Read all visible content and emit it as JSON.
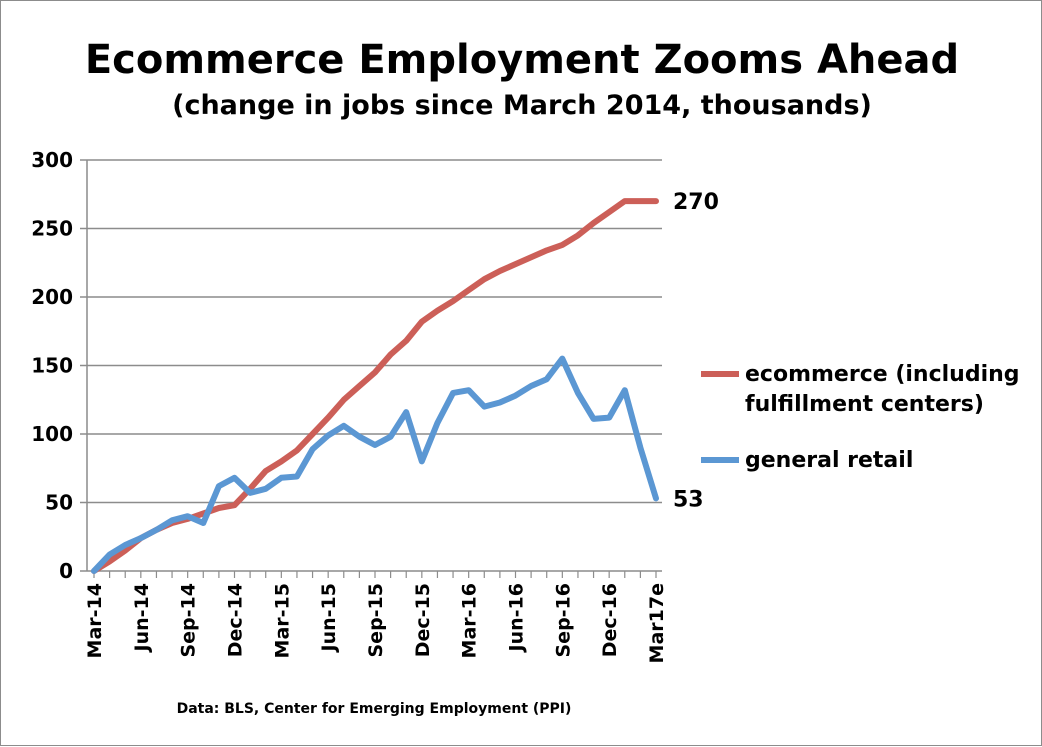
{
  "chart_data": {
    "type": "line",
    "title": "Ecommerce Employment Zooms Ahead",
    "subtitle": "(change in jobs since March 2014, thousands)",
    "source": "Data: BLS, Center for Emerging Employment (PPI)",
    "ylim": [
      0,
      300
    ],
    "yticks": [
      "0",
      "50",
      "100",
      "150",
      "200",
      "250",
      "300"
    ],
    "grid": true,
    "legend": "right",
    "x_tick_labels": [
      "Mar-14",
      "Jun-14",
      "Sep-14",
      "Dec-14",
      "Mar-15",
      "Jun-15",
      "Sep-15",
      "Dec-15",
      "Mar-16",
      "Jun-16",
      "Sep-16",
      "Dec-16",
      "Mar17e"
    ],
    "x": [
      "Mar-14",
      "Apr-14",
      "May-14",
      "Jun-14",
      "Jul-14",
      "Aug-14",
      "Sep-14",
      "Oct-14",
      "Nov-14",
      "Dec-14",
      "Jan-15",
      "Feb-15",
      "Mar-15",
      "Apr-15",
      "May-15",
      "Jun-15",
      "Jul-15",
      "Aug-15",
      "Sep-15",
      "Oct-15",
      "Nov-15",
      "Dec-15",
      "Jan-16",
      "Feb-16",
      "Mar-16",
      "Apr-16",
      "May-16",
      "Jun-16",
      "Jul-16",
      "Aug-16",
      "Sep-16",
      "Oct-16",
      "Nov-16",
      "Dec-16",
      "Jan-17",
      "Feb-17",
      "Mar17e"
    ],
    "series": [
      {
        "name": "ecommerce (including fulfillment centers)",
        "color": "#cc5f58",
        "end_label": "270",
        "values": [
          0,
          7,
          15,
          24,
          30,
          35,
          38,
          42,
          46,
          48,
          60,
          73,
          80,
          88,
          100,
          112,
          125,
          135,
          145,
          158,
          168,
          182,
          190,
          197,
          205,
          213,
          219,
          224,
          229,
          234,
          238,
          245,
          254,
          262,
          270,
          270,
          270
        ]
      },
      {
        "name": "general retail",
        "color": "#5b97d3",
        "end_label": "53",
        "values": [
          0,
          12,
          19,
          24,
          30,
          37,
          40,
          35,
          62,
          68,
          57,
          60,
          68,
          69,
          89,
          99,
          106,
          98,
          92,
          98,
          116,
          80,
          108,
          130,
          132,
          120,
          123,
          128,
          135,
          140,
          155,
          130,
          111,
          112,
          132,
          90,
          53
        ]
      }
    ]
  }
}
